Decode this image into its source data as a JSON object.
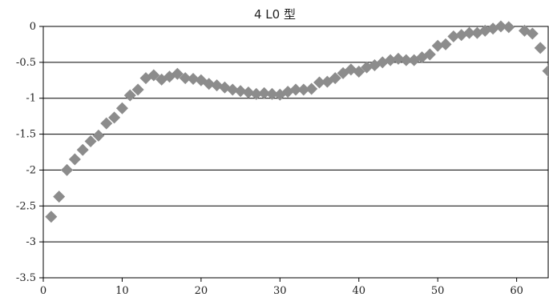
{
  "chart_data": {
    "type": "scatter",
    "title": "4 L0 型",
    "xlabel": "",
    "ylabel": "",
    "xlim": [
      0,
      64
    ],
    "ylim": [
      -3.5,
      0
    ],
    "x_ticks": [
      0,
      10,
      20,
      30,
      40,
      50,
      60
    ],
    "y_ticks": [
      0,
      -0.5,
      -1,
      -1.5,
      -2,
      -2.5,
      -3,
      -3.5
    ],
    "y_tick_labels": [
      "0",
      "-0.5",
      "-1",
      "-1.5",
      "-2",
      "-2.5",
      "-3",
      "-3.5"
    ],
    "grid": "horizontal",
    "marker": "diamond",
    "marker_color": "#8c8c8c",
    "series": [
      {
        "x": [
          1,
          2,
          3,
          4,
          5,
          6,
          7,
          8,
          9,
          10,
          11,
          12,
          13,
          14,
          15,
          16,
          17,
          18,
          19,
          20,
          21,
          22,
          23,
          24,
          25,
          26,
          27,
          28,
          29,
          30,
          31,
          32,
          33,
          34,
          35,
          36,
          37,
          38,
          39,
          40,
          41,
          42,
          43,
          44,
          45,
          46,
          47,
          48,
          49,
          50,
          51,
          52,
          53,
          54,
          55,
          56,
          57,
          58,
          59,
          61,
          62,
          63,
          64
        ],
        "y": [
          -2.65,
          -2.37,
          -2.0,
          -1.85,
          -1.72,
          -1.6,
          -1.52,
          -1.35,
          -1.27,
          -1.14,
          -0.96,
          -0.88,
          -0.72,
          -0.68,
          -0.74,
          -0.7,
          -0.66,
          -0.72,
          -0.73,
          -0.75,
          -0.8,
          -0.82,
          -0.85,
          -0.88,
          -0.9,
          -0.92,
          -0.94,
          -0.93,
          -0.94,
          -0.95,
          -0.91,
          -0.88,
          -0.88,
          -0.87,
          -0.78,
          -0.77,
          -0.72,
          -0.65,
          -0.6,
          -0.63,
          -0.57,
          -0.54,
          -0.5,
          -0.47,
          -0.45,
          -0.47,
          -0.47,
          -0.43,
          -0.39,
          -0.27,
          -0.25,
          -0.14,
          -0.12,
          -0.09,
          -0.09,
          -0.06,
          -0.03,
          0,
          -0.01,
          -0.06,
          -0.1,
          -0.3,
          -0.62
        ]
      }
    ]
  }
}
